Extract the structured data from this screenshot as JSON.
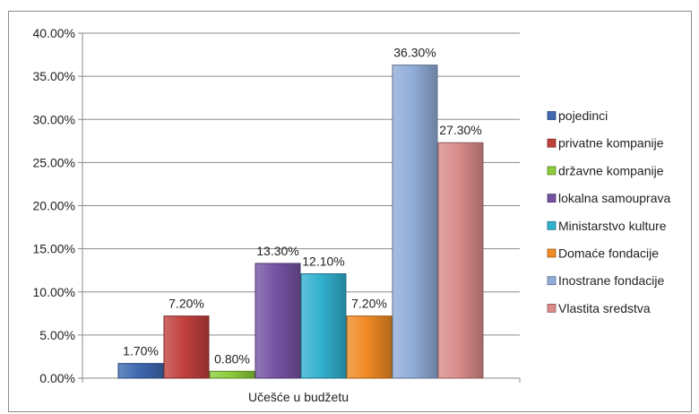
{
  "chart_data": {
    "type": "bar",
    "categories": [
      "Učešće u budžetu"
    ],
    "series": [
      {
        "name": "pojedinci",
        "values": [
          1.7
        ],
        "label": "1.70%",
        "color": "#3e69b1"
      },
      {
        "name": "privatne kompanije",
        "values": [
          7.2
        ],
        "label": "7.20%",
        "color": "#c0403c"
      },
      {
        "name": "državne kompanije",
        "values": [
          0.8
        ],
        "label": "0.80%",
        "color": "#8ccc3b"
      },
      {
        "name": "lokalna samouprava",
        "values": [
          13.3
        ],
        "label": "13.30%",
        "color": "#7553a3"
      },
      {
        "name": "Ministarstvo kulture",
        "values": [
          12.1
        ],
        "label": "12.10%",
        "color": "#31b0cf"
      },
      {
        "name": "Domaće fondacije",
        "values": [
          7.2
        ],
        "label": "7.20%",
        "color": "#f08a24"
      },
      {
        "name": "Inostrane fondacije",
        "values": [
          36.3
        ],
        "label": "36.30%",
        "color": "#90acd8"
      },
      {
        "name": "Vlastita sredstva",
        "values": [
          27.3
        ],
        "label": "27.30%",
        "color": "#d98c8a"
      }
    ],
    "title": "",
    "xlabel": "Učešće u budžetu",
    "ylabel": "",
    "ylim": [
      0,
      40
    ],
    "yticks": [
      0,
      5,
      10,
      15,
      20,
      25,
      30,
      35,
      40
    ],
    "ytick_labels": [
      "0.00%",
      "5.00%",
      "10.00%",
      "15.00%",
      "20.00%",
      "25.00%",
      "30.00%",
      "35.00%",
      "40.00%"
    ],
    "grid": true,
    "legend_position": "right"
  }
}
